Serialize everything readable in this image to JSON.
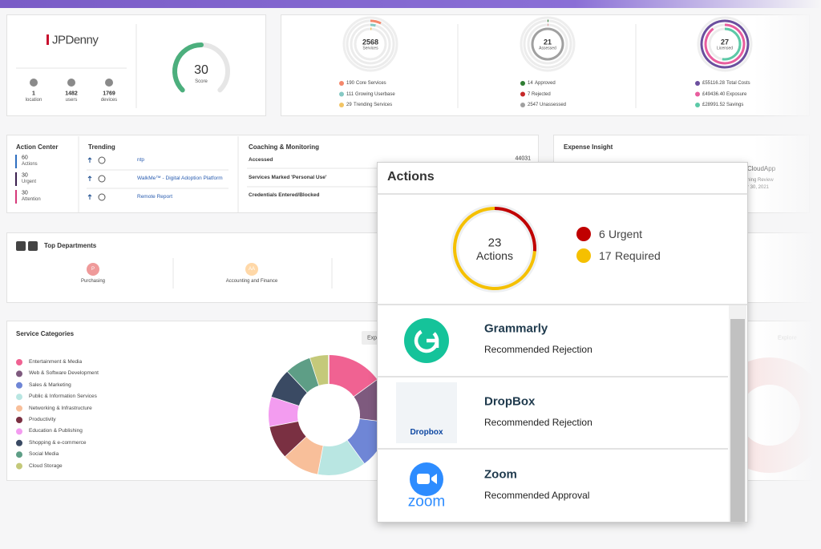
{
  "header": {
    "logo": "JPDenny"
  },
  "account": {
    "stats": [
      {
        "value": 1,
        "label": "location"
      },
      {
        "value": 1482,
        "label": "users"
      },
      {
        "value": 1769,
        "label": "devices"
      }
    ],
    "score": {
      "value": 30,
      "label": "Score"
    }
  },
  "rings": [
    {
      "value": 2568,
      "label": "Services",
      "items": [
        {
          "value": 190,
          "label": "Core Services",
          "color": "#f4876b"
        },
        {
          "value": 111,
          "label": "Growing Userbase",
          "color": "#86c9c4"
        },
        {
          "value": 29,
          "label": "Trending Services",
          "color": "#f2c464"
        }
      ]
    },
    {
      "value": 21,
      "label": "Assessed",
      "items": [
        {
          "value": 14,
          "label": "Approved",
          "color": "#2f7d32"
        },
        {
          "value": 7,
          "label": "Rejected",
          "color": "#c62828"
        },
        {
          "value": 2547,
          "label": "Unassessed",
          "color": "#a0a0a0"
        }
      ]
    },
    {
      "value": 27,
      "label": "Licensed",
      "items": [
        {
          "value": 55116.28,
          "value_label": "£55116.28",
          "label": "Total Costs",
          "color": "#6b4f9e"
        },
        {
          "value": 49436.4,
          "value_label": "£49436.40",
          "label": "Exposure",
          "color": "#e85d9e"
        },
        {
          "value": 28991.52,
          "value_label": "£28991.52",
          "label": "Savings",
          "color": "#5cc9a7"
        }
      ]
    }
  ],
  "action_center": {
    "title": "Action Center",
    "items": [
      {
        "value": 60,
        "label": "Actions",
        "color": "#2f6fc0"
      },
      {
        "value": 30,
        "label": "Urgent",
        "color": "#3b1f4f"
      },
      {
        "value": 30,
        "label": "Attention",
        "color": "#d63a7a"
      }
    ]
  },
  "trending": {
    "title": "Trending",
    "items": [
      "ntp",
      "WalkMe™ - Digital Adoption Platform",
      "Remote Report"
    ]
  },
  "coaching": {
    "title": "Coaching & Monitoring",
    "rows": [
      {
        "label": "Accessed",
        "value": 44031
      },
      {
        "label": "Services Marked 'Personal Use'"
      },
      {
        "label": "Credentials Entered/Blocked"
      }
    ]
  },
  "expense": {
    "title": "Expense Insight",
    "fragments": [
      "CloudApp",
      "ning Review",
      "r 30, 2021"
    ]
  },
  "departments": {
    "title": "Top Departments",
    "items": [
      {
        "initials": "P",
        "name": "Purchasing",
        "color": "#ef9a9a"
      },
      {
        "initials": "AA",
        "name": "Accounting and Finance",
        "color": "#ffd8a8"
      }
    ]
  },
  "service_categories": {
    "title": "Service Categories",
    "button": "Exp",
    "items": [
      {
        "name": "Entertainment & Media",
        "color": "#f06292",
        "value": 15
      },
      {
        "name": "Web & Software Development",
        "color": "#7e5a7e",
        "value": 12
      },
      {
        "name": "Sales & Marketing",
        "color": "#6f86d6",
        "value": 13
      },
      {
        "name": "Public & Information Services",
        "color": "#b9e6e2",
        "value": 13
      },
      {
        "name": "Networking & Infrastructure",
        "color": "#f8bf9a",
        "value": 10
      },
      {
        "name": "Productivity",
        "color": "#7a3042",
        "value": 9
      },
      {
        "name": "Education & Publishing",
        "color": "#f39cf0",
        "value": 8
      },
      {
        "name": "Shopping & e-commerce",
        "color": "#3a4a63",
        "value": 8
      },
      {
        "name": "Social Media",
        "color": "#5e9e86",
        "value": 7
      },
      {
        "name": "Cloud Storage",
        "color": "#c4c97a",
        "value": 5
      }
    ]
  },
  "faded_button": "Explore",
  "actions_popup": {
    "title": "Actions",
    "total": 23,
    "total_label": "Actions",
    "segments": [
      {
        "value": 6,
        "label": "Urgent",
        "color": "#c00000"
      },
      {
        "value": 17,
        "label": "Required",
        "color": "#f5c000"
      }
    ],
    "apps": [
      {
        "name": "Grammarly",
        "recommendation": "Recommended Rejection"
      },
      {
        "name": "DropBox",
        "recommendation": "Recommended Rejection",
        "logo_text": "Dropbox"
      },
      {
        "name": "Zoom",
        "recommendation": "Recommended Approval",
        "logo_text": "zoom"
      }
    ]
  }
}
